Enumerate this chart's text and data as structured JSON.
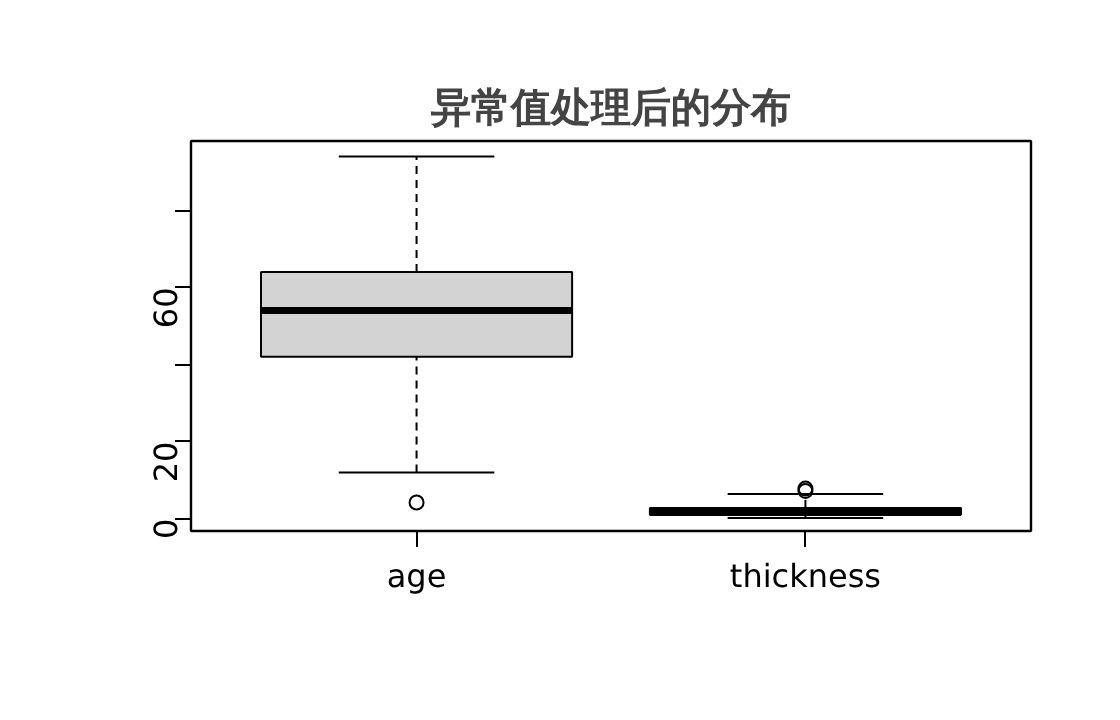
{
  "chart_data": {
    "type": "box",
    "title": "异常值处理后的分布",
    "categories": [
      "age",
      "thickness"
    ],
    "boxes": [
      {
        "low": 12,
        "q1": 42,
        "median": 54,
        "q3": 64,
        "high": 94,
        "outliers": [
          4.2
        ]
      },
      {
        "low": 0.2,
        "q1": 1,
        "median": 1.6,
        "q3": 2.8,
        "high": 6.4,
        "outliers": [
          7.2,
          7.8
        ]
      }
    ],
    "color": "#d3d3d3",
    "ylim": [
      -3.2,
      98
    ],
    "yticks": [
      0,
      20,
      {
        "value": 40,
        "label": null
      },
      60,
      {
        "value": 80,
        "label": null
      }
    ],
    "grid": false
  }
}
